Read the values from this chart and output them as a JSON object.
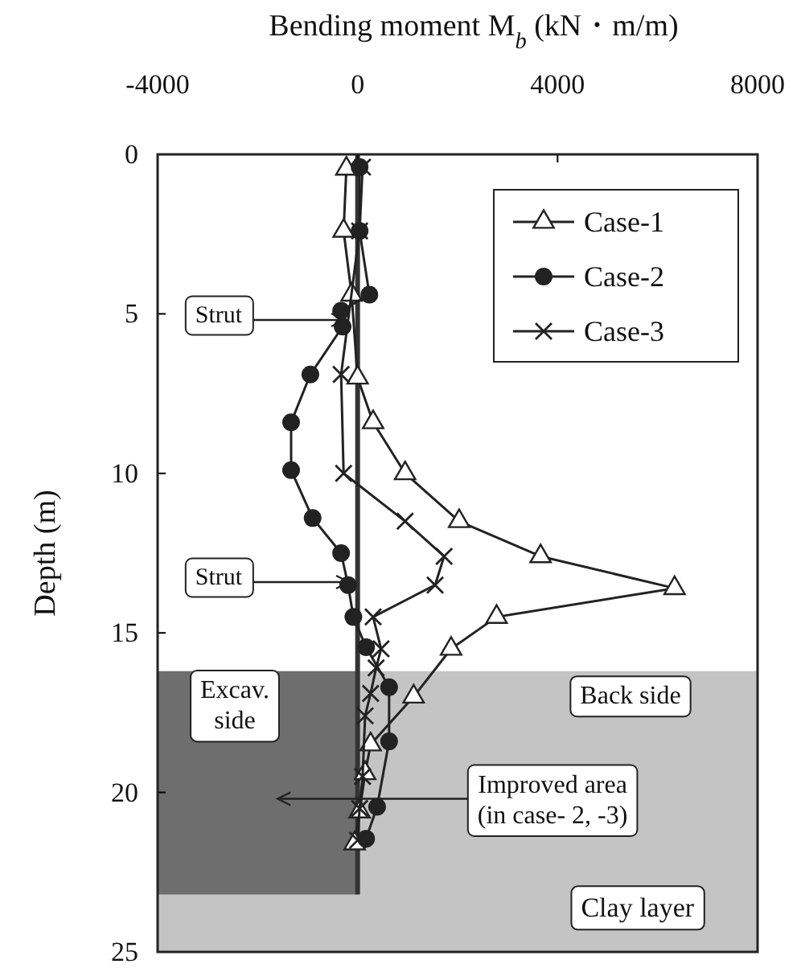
{
  "chart_data": {
    "type": "line",
    "xlabel": "Bending moment M$_{b}$ (kN・m/m)",
    "ylabel": "Depth (m)",
    "xlim": [
      -4000,
      8000
    ],
    "xticks": [
      -4000,
      0,
      4000,
      8000
    ],
    "ylim": [
      25,
      0
    ],
    "yticks": [
      0,
      5,
      10,
      15,
      20,
      25
    ],
    "grid": false,
    "legend": "top right",
    "line_style": "solid",
    "series": [
      {
        "name": "Case-1",
        "color": "#222222",
        "marker": "triangle",
        "x": [
          -225,
          -280,
          -120,
          0,
          310,
          950,
          2030,
          3660,
          6340,
          2780,
          1870,
          1120,
          260,
          150,
          40,
          -60
        ],
        "values": [
          0.45,
          2.4,
          4.4,
          7.0,
          8.4,
          10.0,
          11.5,
          12.6,
          13.6,
          14.5,
          15.5,
          17.0,
          18.5,
          19.4,
          20.6,
          21.6
        ]
      },
      {
        "name": "Case-2",
        "color": "#222222",
        "marker": "circle",
        "x": [
          40,
          40,
          235,
          -330,
          -300,
          -945,
          -1330,
          -1330,
          -900,
          -330,
          -190,
          -85,
          170,
          630,
          630,
          390,
          170
        ],
        "values": [
          0.4,
          2.4,
          4.4,
          4.9,
          5.4,
          6.9,
          8.4,
          9.9,
          11.4,
          12.5,
          13.5,
          14.5,
          15.45,
          16.7,
          18.4,
          20.45,
          21.45
        ]
      },
      {
        "name": "Case-3",
        "color": "#222222",
        "marker": "cross",
        "x": [
          100,
          40,
          -120,
          -330,
          -280,
          950,
          1730,
          1550,
          310,
          470,
          370,
          260,
          150,
          100,
          40,
          0
        ],
        "values": [
          0.4,
          2.4,
          null,
          6.9,
          10.0,
          11.5,
          12.6,
          13.5,
          14.5,
          15.5,
          16.1,
          16.9,
          17.6,
          19.5,
          20.5,
          21.5
        ]
      }
    ],
    "bands": [
      {
        "axis": "y",
        "from": 16.2,
        "to": 25,
        "label": "Clay layer",
        "color": "#c4c4c4"
      },
      {
        "axis": "y",
        "from": 16.2,
        "to": 23.2,
        "label": "Improved area (in case- 2, -3)",
        "color": "#6e6e6e"
      }
    ],
    "ref_lines": [
      {
        "axis": "x",
        "value": 0,
        "color": "#333333"
      }
    ],
    "annotations": [
      "Strut",
      "Strut",
      "Excav. side",
      "Back side"
    ]
  }
}
